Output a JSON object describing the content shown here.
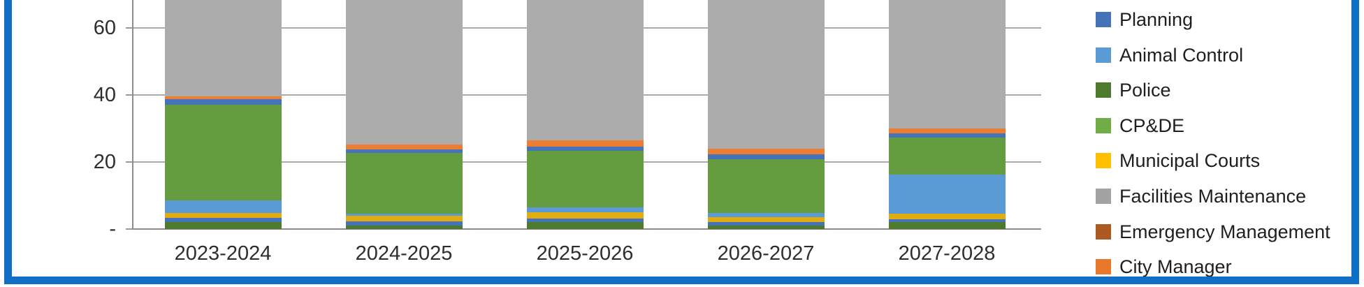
{
  "frame": {
    "border_color": "#0E6FC4"
  },
  "y_axis": {
    "ticks": [
      {
        "label": "60",
        "value": 60
      },
      {
        "label": "40",
        "value": 40
      },
      {
        "label": "20",
        "value": 20
      },
      {
        "label": "-",
        "value": 0
      }
    ]
  },
  "x_axis": {
    "categories": [
      "2023-2024",
      "2024-2025",
      "2025-2026",
      "2026-2027",
      "2027-2028"
    ]
  },
  "legend": {
    "items": [
      {
        "label": "Planning",
        "color": "#4573B9"
      },
      {
        "label": "Animal Control",
        "color": "#5B9BD5"
      },
      {
        "label": "Police",
        "color": "#4E7A2D"
      },
      {
        "label": "CP&DE",
        "color": "#70AD47"
      },
      {
        "label": "Municipal Courts",
        "color": "#FFC000"
      },
      {
        "label": "Facilities Maintenance",
        "color": "#A3A3A3"
      },
      {
        "label": "Emergency Management",
        "color": "#AC5A21"
      },
      {
        "label": "City Manager",
        "color": "#E8782A"
      }
    ]
  },
  "chart_data": {
    "type": "bar",
    "subtype": "stacked-column",
    "title": "",
    "xlabel": "",
    "ylabel": "",
    "categories": [
      "2023-2024",
      "2024-2025",
      "2025-2026",
      "2026-2027",
      "2027-2028"
    ],
    "ylim_visible": [
      0,
      68
    ],
    "gridline_values": [
      0,
      20,
      40,
      60
    ],
    "legend_position": "right",
    "cropped_top": true,
    "series": [
      {
        "name": "Police",
        "color": "#4E7A2D",
        "values": [
          2.0,
          1.0,
          2.0,
          1.0,
          2.0
        ]
      },
      {
        "name": "Planning",
        "color": "#4573B9",
        "values": [
          1.3,
          1.3,
          1.2,
          1.0,
          1.0
        ]
      },
      {
        "name": "Municipal Courts",
        "color": "#E2AB10",
        "values": [
          1.5,
          1.6,
          1.7,
          1.6,
          1.5
        ]
      },
      {
        "name": "Animal Control",
        "color": "#5B9BD5",
        "values": [
          3.8,
          0.6,
          1.5,
          1.2,
          11.7
        ]
      },
      {
        "name": "CP&DE",
        "color": "#649C3F",
        "values": [
          28.5,
          18.2,
          17.0,
          16.0,
          11.0
        ]
      },
      {
        "name": "Emergency Management",
        "color": "#4573B9",
        "values": [
          1.7,
          1.0,
          1.2,
          1.5,
          1.3
        ]
      },
      {
        "name": "City Manager",
        "color": "#ED7D31",
        "values": [
          0.8,
          1.5,
          1.9,
          1.7,
          1.5
        ]
      },
      {
        "name": "Facilities Maintenance",
        "color": "#ACACAC",
        "fills_to_top": true,
        "visible_base_values": [
          39.6,
          25.2,
          26.5,
          24.0,
          30.0
        ]
      }
    ]
  }
}
